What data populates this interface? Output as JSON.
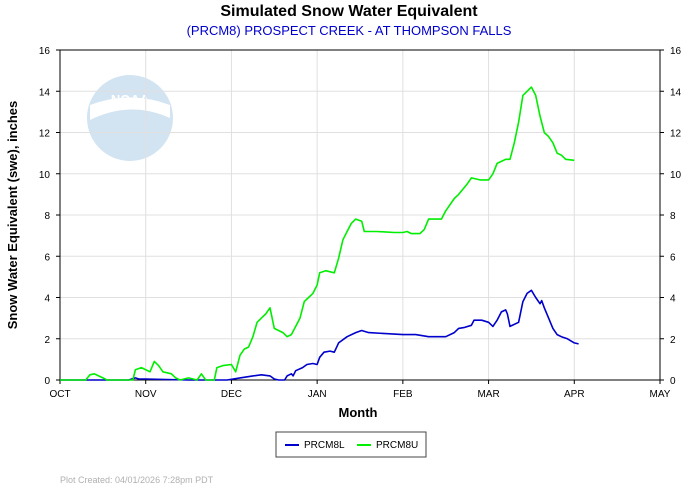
{
  "colors": {
    "PRCM8L": "#0000cc",
    "PRCM8U": "#00ee00",
    "subtitle": "#0000cc"
  },
  "logo": {
    "name": "noaa-logo",
    "text": "NOAA"
  },
  "footer": "Plot Created: 04/01/2026 7:28pm PDT",
  "chart_data": {
    "type": "line",
    "title": "Simulated Snow Water Equivalent",
    "subtitle": "(PRCM8) PROSPECT CREEK - AT THOMPSON FALLS",
    "xlabel": "Month",
    "ylabel": "Snow Water Equivalent (swe),  inches",
    "ylim": [
      0,
      16
    ],
    "yticks": [
      0,
      2,
      4,
      6,
      8,
      10,
      12,
      14,
      16
    ],
    "xlim": [
      0,
      7
    ],
    "xtick_labels": [
      "OCT",
      "NOV",
      "DEC",
      "JAN",
      "FEB",
      "MAR",
      "APR",
      "MAY"
    ],
    "grid": true,
    "legend_position": "bottom-center",
    "series": [
      {
        "name": "PRCM8L",
        "color": "#0000cc",
        "points": [
          [
            0.0,
            0.0
          ],
          [
            0.8,
            0.0
          ],
          [
            0.88,
            0.1
          ],
          [
            0.92,
            0.05
          ],
          [
            1.0,
            0.05
          ],
          [
            1.5,
            0.0
          ],
          [
            1.95,
            0.0
          ],
          [
            2.1,
            0.1
          ],
          [
            2.25,
            0.2
          ],
          [
            2.35,
            0.25
          ],
          [
            2.45,
            0.2
          ],
          [
            2.5,
            0.05
          ],
          [
            2.55,
            0.0
          ],
          [
            2.62,
            0.0
          ],
          [
            2.65,
            0.2
          ],
          [
            2.7,
            0.3
          ],
          [
            2.72,
            0.2
          ],
          [
            2.75,
            0.45
          ],
          [
            2.83,
            0.6
          ],
          [
            2.88,
            0.75
          ],
          [
            2.95,
            0.8
          ],
          [
            3.0,
            0.75
          ],
          [
            3.03,
            1.1
          ],
          [
            3.08,
            1.35
          ],
          [
            3.15,
            1.4
          ],
          [
            3.2,
            1.35
          ],
          [
            3.25,
            1.8
          ],
          [
            3.35,
            2.1
          ],
          [
            3.45,
            2.3
          ],
          [
            3.52,
            2.4
          ],
          [
            3.6,
            2.3
          ],
          [
            4.0,
            2.2
          ],
          [
            4.15,
            2.2
          ],
          [
            4.3,
            2.1
          ],
          [
            4.4,
            2.1
          ],
          [
            4.5,
            2.1
          ],
          [
            4.6,
            2.3
          ],
          [
            4.65,
            2.5
          ],
          [
            4.72,
            2.55
          ],
          [
            4.8,
            2.65
          ],
          [
            4.83,
            2.9
          ],
          [
            4.92,
            2.9
          ],
          [
            5.0,
            2.8
          ],
          [
            5.05,
            2.6
          ],
          [
            5.1,
            2.9
          ],
          [
            5.15,
            3.3
          ],
          [
            5.2,
            3.4
          ],
          [
            5.22,
            3.2
          ],
          [
            5.25,
            2.6
          ],
          [
            5.35,
            2.8
          ],
          [
            5.4,
            3.8
          ],
          [
            5.45,
            4.2
          ],
          [
            5.5,
            4.35
          ],
          [
            5.55,
            4.0
          ],
          [
            5.6,
            3.7
          ],
          [
            5.62,
            3.85
          ],
          [
            5.65,
            3.5
          ],
          [
            5.7,
            3.0
          ],
          [
            5.75,
            2.5
          ],
          [
            5.8,
            2.2
          ],
          [
            5.85,
            2.1
          ],
          [
            5.92,
            2.0
          ],
          [
            6.0,
            1.8
          ],
          [
            6.05,
            1.75
          ]
        ]
      },
      {
        "name": "PRCM8U",
        "color": "#00ee00",
        "points": [
          [
            0.0,
            0.0
          ],
          [
            0.3,
            0.0
          ],
          [
            0.35,
            0.25
          ],
          [
            0.4,
            0.3
          ],
          [
            0.45,
            0.2
          ],
          [
            0.5,
            0.1
          ],
          [
            0.55,
            0.0
          ],
          [
            0.85,
            0.0
          ],
          [
            0.88,
            0.5
          ],
          [
            0.95,
            0.6
          ],
          [
            1.05,
            0.4
          ],
          [
            1.1,
            0.9
          ],
          [
            1.15,
            0.7
          ],
          [
            1.2,
            0.4
          ],
          [
            1.3,
            0.3
          ],
          [
            1.35,
            0.1
          ],
          [
            1.4,
            0.0
          ],
          [
            1.5,
            0.1
          ],
          [
            1.6,
            0.0
          ],
          [
            1.65,
            0.3
          ],
          [
            1.7,
            0.0
          ],
          [
            1.8,
            0.0
          ],
          [
            1.83,
            0.6
          ],
          [
            1.9,
            0.7
          ],
          [
            2.0,
            0.75
          ],
          [
            2.05,
            0.4
          ],
          [
            2.1,
            1.2
          ],
          [
            2.15,
            1.5
          ],
          [
            2.2,
            1.6
          ],
          [
            2.25,
            2.1
          ],
          [
            2.3,
            2.8
          ],
          [
            2.35,
            3.0
          ],
          [
            2.4,
            3.2
          ],
          [
            2.45,
            3.5
          ],
          [
            2.5,
            2.5
          ],
          [
            2.55,
            2.4
          ],
          [
            2.6,
            2.3
          ],
          [
            2.65,
            2.1
          ],
          [
            2.7,
            2.2
          ],
          [
            2.8,
            3.0
          ],
          [
            2.85,
            3.8
          ],
          [
            2.9,
            4.0
          ],
          [
            2.95,
            4.2
          ],
          [
            3.0,
            4.6
          ],
          [
            3.03,
            5.2
          ],
          [
            3.1,
            5.3
          ],
          [
            3.2,
            5.2
          ],
          [
            3.25,
            5.9
          ],
          [
            3.3,
            6.8
          ],
          [
            3.35,
            7.2
          ],
          [
            3.4,
            7.6
          ],
          [
            3.45,
            7.8
          ],
          [
            3.52,
            7.7
          ],
          [
            3.55,
            7.2
          ],
          [
            3.7,
            7.2
          ],
          [
            3.9,
            7.15
          ],
          [
            4.0,
            7.15
          ],
          [
            4.05,
            7.2
          ],
          [
            4.1,
            7.1
          ],
          [
            4.2,
            7.1
          ],
          [
            4.25,
            7.3
          ],
          [
            4.3,
            7.8
          ],
          [
            4.45,
            7.8
          ],
          [
            4.5,
            8.2
          ],
          [
            4.55,
            8.5
          ],
          [
            4.6,
            8.8
          ],
          [
            4.65,
            9.0
          ],
          [
            4.75,
            9.5
          ],
          [
            4.8,
            9.8
          ],
          [
            4.9,
            9.7
          ],
          [
            5.0,
            9.7
          ],
          [
            5.05,
            10.0
          ],
          [
            5.1,
            10.5
          ],
          [
            5.2,
            10.7
          ],
          [
            5.25,
            10.7
          ],
          [
            5.3,
            11.5
          ],
          [
            5.35,
            12.5
          ],
          [
            5.4,
            13.8
          ],
          [
            5.45,
            14.0
          ],
          [
            5.5,
            14.2
          ],
          [
            5.55,
            13.8
          ],
          [
            5.6,
            12.8
          ],
          [
            5.65,
            12.0
          ],
          [
            5.7,
            11.8
          ],
          [
            5.75,
            11.5
          ],
          [
            5.8,
            11.0
          ],
          [
            5.85,
            10.9
          ],
          [
            5.9,
            10.7
          ],
          [
            6.0,
            10.65
          ]
        ]
      }
    ]
  }
}
